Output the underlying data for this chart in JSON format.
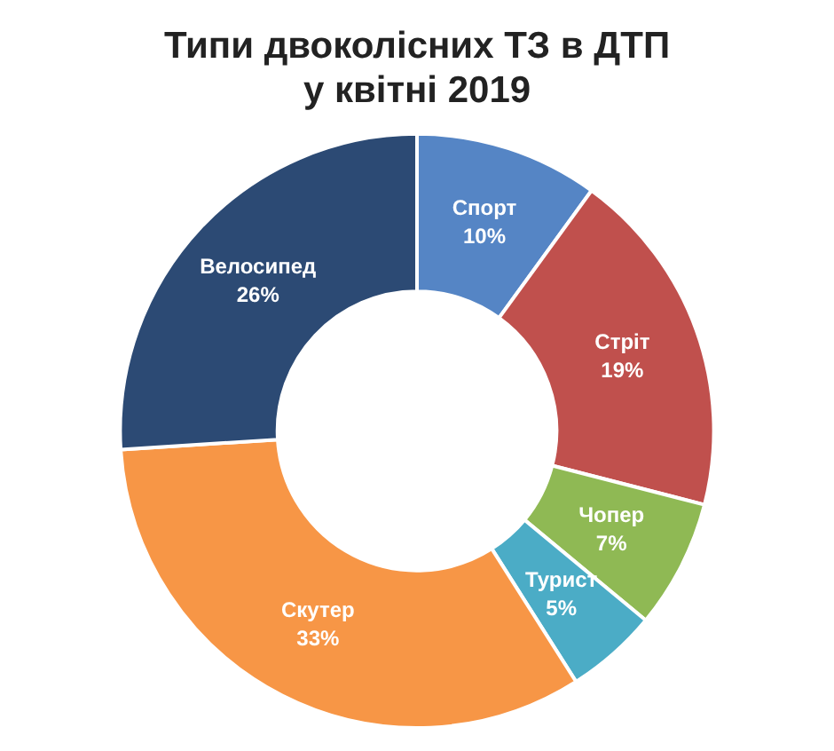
{
  "chart_data": {
    "type": "donut",
    "title": "Типи двоколісних ТЗ в ДТП\nу квітні 2019",
    "categories": [
      "Спорт",
      "Стріт",
      "Чопер",
      "Турист",
      "Скутер",
      "Велосипед"
    ],
    "values": [
      10,
      19,
      7,
      5,
      33,
      26
    ],
    "colors": [
      "#5585c5",
      "#c0504d",
      "#8fb954",
      "#4bacc6",
      "#f79646",
      "#2c4a74"
    ],
    "value_labels": [
      "10%",
      "19%",
      "7%",
      "5%",
      "33%",
      "26%"
    ],
    "legend": false
  }
}
